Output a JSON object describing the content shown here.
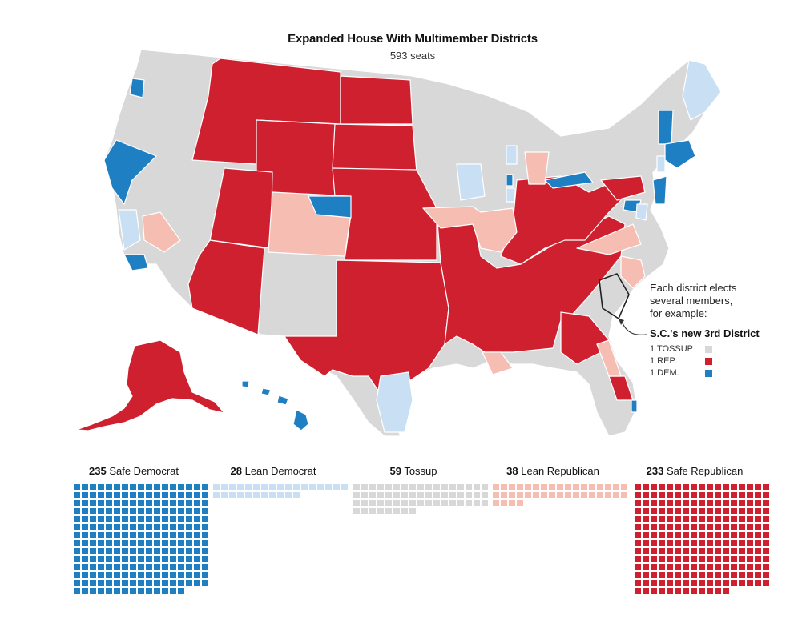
{
  "title": "Expanded House With Multimember Districts",
  "subtitle": "593 seats",
  "colors": {
    "safe_dem": "#1f7fc3",
    "lean_dem": "#c9dff3",
    "tossup": "#d8d8d8",
    "lean_rep": "#f6bdb3",
    "safe_rep": "#cf202f",
    "border": "#ffffff"
  },
  "annotation": {
    "lines": [
      "Each district elects",
      "several members,",
      "for example:"
    ],
    "example_title": "S.C.'s new 3rd District",
    "legend": [
      {
        "label": "1 TOSSUP",
        "color_key": "tossup"
      },
      {
        "label": "1 REP.",
        "color_key": "safe_rep"
      },
      {
        "label": "1 DEM.",
        "color_key": "safe_dem"
      }
    ]
  },
  "groups": [
    {
      "count": 235,
      "label": "Safe Democrat",
      "color_key": "safe_dem"
    },
    {
      "count": 28,
      "label": "Lean Democrat",
      "color_key": "lean_dem"
    },
    {
      "count": 59,
      "label": "Tossup",
      "color_key": "tossup"
    },
    {
      "count": 38,
      "label": "Lean Republican",
      "color_key": "lean_rep"
    },
    {
      "count": 233,
      "label": "Safe Republican",
      "color_key": "safe_rep"
    }
  ]
}
